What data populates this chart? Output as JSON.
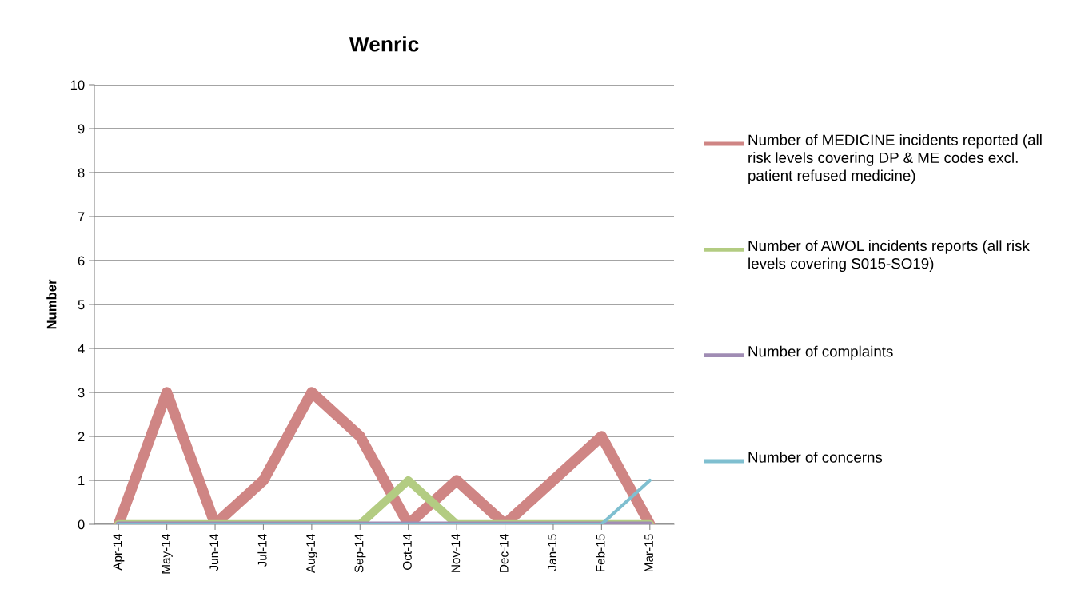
{
  "chart_data": {
    "type": "line",
    "title": "Wenric",
    "ylabel": "Number",
    "categories": [
      "Apr-14",
      "May-14",
      "Jun-14",
      "Jul-14",
      "Aug-14",
      "Sep-14",
      "Oct-14",
      "Nov-14",
      "Dec-14",
      "Jan-15",
      "Feb-15",
      "Mar-15"
    ],
    "series": [
      {
        "name": "Number of MEDICINE incidents reported (all risk levels covering DP & ME codes excl. patient refused medicine)",
        "color": "#cf8584",
        "values": [
          0,
          3,
          0,
          1,
          3,
          2,
          0,
          1,
          0,
          1,
          2,
          0
        ]
      },
      {
        "name": "Number of AWOL incidents reports (all risk levels covering S015-SO19)",
        "color": "#b3cc82",
        "values": [
          0,
          0,
          0,
          0,
          0,
          0,
          1,
          0,
          0,
          0,
          0,
          0
        ]
      },
      {
        "name": "Number of complaints",
        "color": "#a08cb4",
        "values": [
          0,
          0,
          0,
          0,
          0,
          0,
          0,
          0,
          0,
          0,
          0,
          0
        ]
      },
      {
        "name": "Number of concerns",
        "color": "#7fbfd0",
        "values": [
          0,
          0,
          0,
          0,
          0,
          0,
          0,
          0,
          0,
          0,
          0,
          1
        ]
      }
    ],
    "ylim": [
      0,
      10
    ],
    "yticks": [
      0,
      1,
      2,
      3,
      4,
      5,
      6,
      7,
      8,
      9,
      10
    ],
    "grid": "y",
    "legend": "right",
    "marker": "none",
    "line_style": "solid"
  }
}
